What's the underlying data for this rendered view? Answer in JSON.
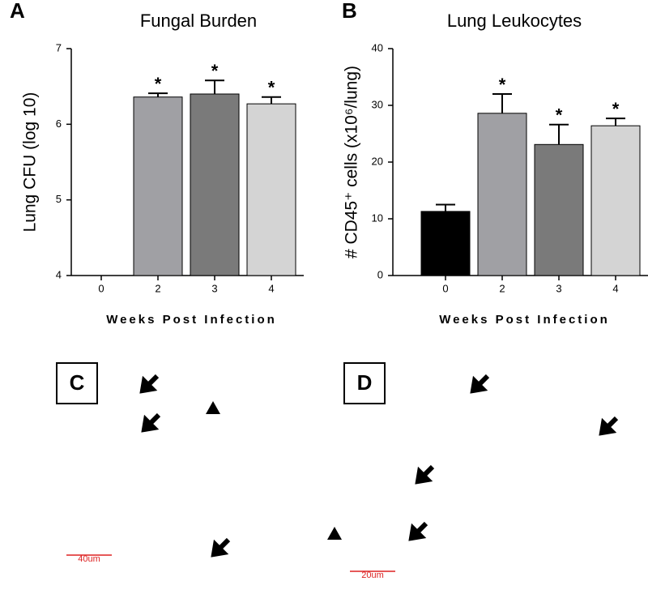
{
  "chart_data": [
    {
      "type": "bar",
      "panel": "A",
      "title": "Fungal Burden",
      "y_label": "Lung CFU (log 10)",
      "x_label": "Weeks Post Infection",
      "categories": [
        "0",
        "2",
        "3",
        "4"
      ],
      "values": [
        null,
        6.36,
        6.4,
        6.27
      ],
      "errors": [
        null,
        0.05,
        0.18,
        0.09
      ],
      "colors": [
        "#000000",
        "#a0a0a4",
        "#7a7a7a",
        "#d4d4d4"
      ],
      "significance": [
        null,
        "*",
        "*",
        "*"
      ],
      "ylim": [
        4,
        7
      ],
      "yticks": [
        4,
        5,
        6,
        7
      ]
    },
    {
      "type": "bar",
      "panel": "B",
      "title": "Lung Leukocytes",
      "y_label": "# CD45⁺ cells (x10⁶/lung)",
      "x_label": "Weeks Post Infection",
      "categories": [
        "0",
        "2",
        "3",
        "4"
      ],
      "values": [
        11.3,
        28.6,
        23.1,
        26.4
      ],
      "errors": [
        1.2,
        3.4,
        3.5,
        1.3
      ],
      "colors": [
        "#000000",
        "#a0a0a4",
        "#7a7a7a",
        "#d4d4d4"
      ],
      "significance": [
        null,
        "*",
        "*",
        "*"
      ],
      "ylim": [
        0,
        40
      ],
      "yticks": [
        0,
        10,
        20,
        30,
        40
      ]
    }
  ],
  "images": [
    {
      "label": "C",
      "scale": "40um"
    },
    {
      "label": "D",
      "scale": "20um"
    }
  ]
}
